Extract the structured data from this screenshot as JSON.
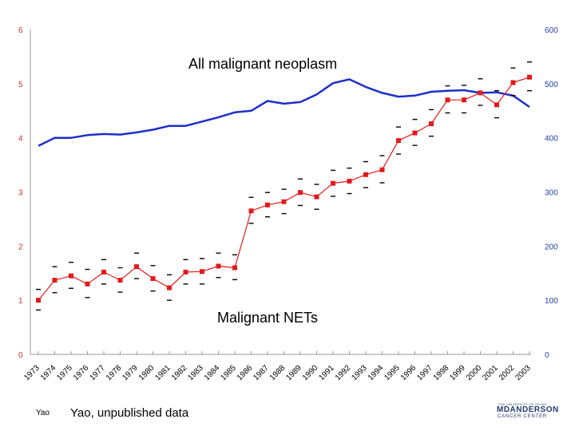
{
  "chart_data": {
    "type": "line",
    "title": "",
    "x": [
      1973,
      1974,
      1975,
      1976,
      1977,
      1978,
      1979,
      1980,
      1981,
      1982,
      1983,
      1984,
      1985,
      1986,
      1987,
      1988,
      1989,
      1990,
      1991,
      1992,
      1993,
      1994,
      1995,
      1996,
      1997,
      1998,
      1999,
      2000,
      2001,
      2002,
      2003
    ],
    "x_tick_labels": [
      "1973",
      "1974",
      "1975",
      "1976",
      "1977",
      "1978",
      "1979",
      "1980",
      "1981",
      "1982",
      "1983",
      "1984",
      "1985",
      "1986",
      "1987",
      "1988",
      "1989",
      "1990",
      "1991",
      "1992",
      "1993",
      "1994",
      "1995",
      "1996",
      "1997",
      "1998",
      "1999",
      "2000",
      "2001",
      "2002",
      "2003"
    ],
    "y_left": {
      "ylim": [
        0,
        6
      ],
      "ticks": [
        "0",
        "1",
        "2",
        "3",
        "4",
        "5",
        "6"
      ],
      "color": "#c0392b"
    },
    "y_right": {
      "ylim": [
        0,
        600
      ],
      "ticks": [
        "0",
        "100",
        "200",
        "300",
        "400",
        "500",
        "600"
      ],
      "color": "#1f3fa8"
    },
    "series": [
      {
        "name": "All malignant neoplasm",
        "axis": "right",
        "color": "#1f2fc8",
        "values": [
          385,
          400,
          400,
          405,
          407,
          406,
          410,
          415,
          422,
          422,
          430,
          438,
          447,
          450,
          468,
          463,
          466,
          480,
          501,
          508,
          494,
          483,
          476,
          478,
          485,
          487,
          488,
          483,
          484,
          478,
          457
        ]
      },
      {
        "name": "Malignant NETs",
        "axis": "left",
        "color": "#e31a1c",
        "values": [
          1.0,
          1.37,
          1.45,
          1.3,
          1.52,
          1.37,
          1.62,
          1.4,
          1.23,
          1.52,
          1.53,
          1.63,
          1.6,
          2.65,
          2.76,
          2.82,
          2.99,
          2.91,
          3.16,
          3.2,
          3.32,
          3.41,
          3.95,
          4.09,
          4.26,
          4.7,
          4.7,
          4.83,
          4.61,
          5.02,
          5.12
        ],
        "ci_upper": [
          1.2,
          1.62,
          1.7,
          1.57,
          1.75,
          1.6,
          1.87,
          1.64,
          1.47,
          1.75,
          1.77,
          1.87,
          1.84,
          2.9,
          2.99,
          3.05,
          3.24,
          3.14,
          3.4,
          3.44,
          3.56,
          3.67,
          4.2,
          4.34,
          4.52,
          4.96,
          4.97,
          5.09,
          4.87,
          5.29,
          5.4
        ],
        "ci_lower": [
          0.82,
          1.14,
          1.22,
          1.05,
          1.3,
          1.15,
          1.4,
          1.17,
          1.0,
          1.3,
          1.3,
          1.42,
          1.38,
          2.42,
          2.54,
          2.6,
          2.75,
          2.68,
          2.92,
          2.97,
          3.08,
          3.17,
          3.7,
          3.86,
          4.03,
          4.46,
          4.46,
          4.6,
          4.37,
          4.78,
          4.87
        ]
      }
    ],
    "annotations": [
      "All malignant neoplasm",
      "Malignant NETs"
    ]
  },
  "footer": {
    "small_label": "Yao",
    "credit": "Yao, unpublished data"
  },
  "logo": {
    "line1": "THE UNIVERSITY OF TEXAS",
    "line2": "MDANDERSON",
    "line3": "CANCER CENTER"
  }
}
